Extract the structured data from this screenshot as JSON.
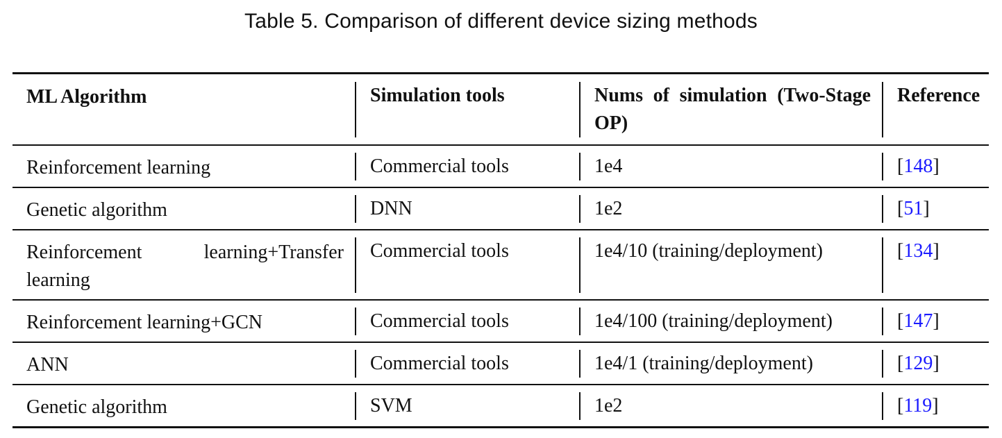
{
  "caption": "Table 5.  Comparison of different device sizing methods",
  "table": {
    "headers": [
      "ML Algorithm",
      "Simulation tools",
      "Nums of simulation (Two-Stage OP)",
      "Reference"
    ],
    "rows": [
      {
        "algorithm": "Reinforcement learning",
        "tools": "Commercial tools",
        "nums": "1e4",
        "ref_open": "[",
        "ref": "148",
        "ref_close": "]"
      },
      {
        "algorithm": "Genetic algorithm",
        "tools": "DNN",
        "nums": "1e2",
        "ref_open": "[",
        "ref": "51",
        "ref_close": "]"
      },
      {
        "algorithm": "Reinforcement learning+Transfer learning",
        "tools": "Commercial tools",
        "nums": "1e4/10 (training/deployment)",
        "ref_open": "[",
        "ref": "134",
        "ref_close": "]"
      },
      {
        "algorithm": "Reinforcement learning+GCN",
        "tools": "Commercial tools",
        "nums": "1e4/100 (training/deployment)",
        "ref_open": "[",
        "ref": "147",
        "ref_close": "]"
      },
      {
        "algorithm": "ANN",
        "tools": "Commercial tools",
        "nums": "1e4/1 (training/deployment)",
        "ref_open": "[",
        "ref": "129",
        "ref_close": "]"
      },
      {
        "algorithm": "Genetic algorithm",
        "tools": "SVM",
        "nums": "1e2",
        "ref_open": "[",
        "ref": "119",
        "ref_close": "]"
      }
    ]
  },
  "colors": {
    "link": "#1a1aff",
    "text": "#111111",
    "background": "#ffffff"
  }
}
